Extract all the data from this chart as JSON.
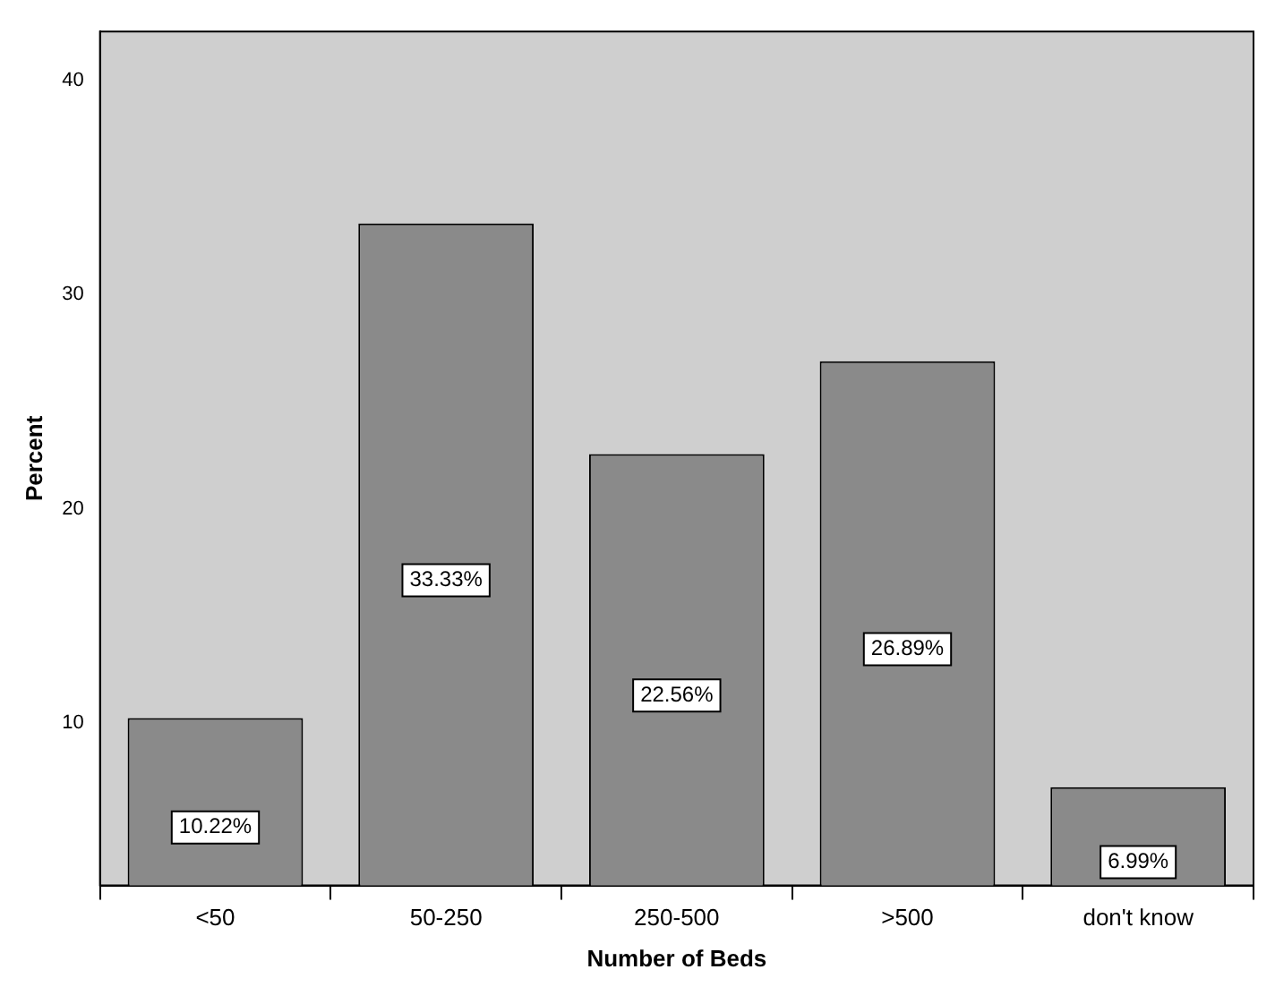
{
  "chart_data": {
    "type": "bar",
    "xlabel": "Number of Beds",
    "ylabel": "Percent",
    "categories": [
      "<50",
      "50-250",
      "250-500",
      ">500",
      "don't know"
    ],
    "values": [
      10.22,
      33.33,
      22.56,
      26.89,
      6.99
    ],
    "value_labels": [
      "10.22%",
      "33.33%",
      "22.56%",
      "26.89%",
      "6.99%"
    ],
    "color": "#8a8a8a",
    "ylim": [
      2.4,
      42.3
    ],
    "yticks": [
      10,
      20,
      30,
      40
    ],
    "grid": false,
    "legend": false
  }
}
